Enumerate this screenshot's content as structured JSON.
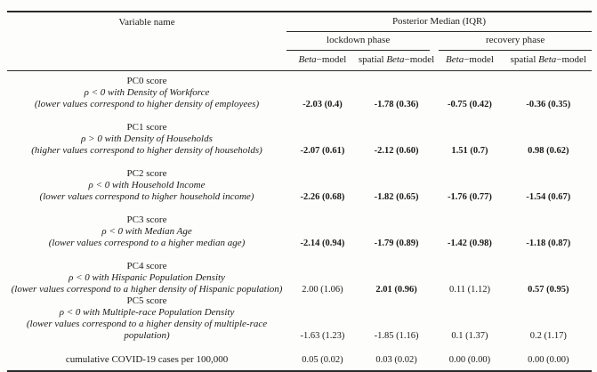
{
  "page": {
    "background_color": "#fdfdfc",
    "text_color": "#1b1b1b",
    "rule_color": "#2a2a2a"
  },
  "table": {
    "header": {
      "variable_name": "Variable name",
      "posterior_median": "Posterior Median (IQR)",
      "phase_lockdown": "lockdown phase",
      "phase_recovery": "recovery phase",
      "model_columns": [
        {
          "prefix": "",
          "italic": "Beta",
          "suffix": "−model"
        },
        {
          "prefix": "spatial ",
          "italic": "Beta",
          "suffix": "−model"
        },
        {
          "prefix": "",
          "italic": "Beta",
          "suffix": "−model"
        },
        {
          "prefix": "spatial ",
          "italic": "Beta",
          "suffix": "−model"
        }
      ]
    },
    "rows": [
      {
        "title": "PC0 score",
        "relation": "ρ < 0 with Density of Workforce",
        "note": "(lower values correspond to higher density of employees)",
        "values": [
          {
            "text": "-2.03 (0.4)",
            "bold": true
          },
          {
            "text": "-1.78 (0.36)",
            "bold": true
          },
          {
            "text": "-0.75 (0.42)",
            "bold": true
          },
          {
            "text": "-0.36 (0.35)",
            "bold": true
          }
        ]
      },
      {
        "title": "PC1 score",
        "relation": "ρ > 0 with Density of Households",
        "note": "(higher values correspond to higher density of households)",
        "values": [
          {
            "text": "-2.07 (0.61)",
            "bold": true
          },
          {
            "text": "-2.12 (0.60)",
            "bold": true
          },
          {
            "text": "1.51 (0.7)",
            "bold": true
          },
          {
            "text": "0.98 (0.62)",
            "bold": true
          }
        ]
      },
      {
        "title": "PC2 score",
        "relation": "ρ < 0 with Household Income",
        "note": "(lower values correspond to higher household income)",
        "values": [
          {
            "text": "-2.26 (0.68)",
            "bold": true
          },
          {
            "text": "-1.82 (0.65)",
            "bold": true
          },
          {
            "text": "-1.76 (0.77)",
            "bold": true
          },
          {
            "text": "-1.54 (0.67)",
            "bold": true
          }
        ]
      },
      {
        "title": "PC3 score",
        "relation": "ρ < 0 with Median Age",
        "note": "(lower values correspond to a higher median age)",
        "values": [
          {
            "text": "-2.14 (0.94)",
            "bold": true
          },
          {
            "text": "-1.79 (0.89)",
            "bold": true
          },
          {
            "text": "-1.42 (0.98)",
            "bold": true
          },
          {
            "text": "-1.18 (0.87)",
            "bold": true
          }
        ]
      },
      {
        "title": "PC4 score",
        "relation": "ρ < 0 with Hispanic Population Density",
        "note": "(lower values correspond to a higher density of Hispanic population)",
        "values": [
          {
            "text": "2.00 (1.06)",
            "bold": false
          },
          {
            "text": "2.01 (0.96)",
            "bold": true
          },
          {
            "text": "0.11 (1.12)",
            "bold": false
          },
          {
            "text": "0.57 (0.95)",
            "bold": true
          }
        ]
      },
      {
        "title": "PC5 score",
        "relation": "ρ < 0 with Multiple-race Population Density",
        "note": "(lower values correspond to a higher density of multiple-race population)",
        "values": [
          {
            "text": "-1.63 (1.23)",
            "bold": false
          },
          {
            "text": "-1.85 (1.16)",
            "bold": false
          },
          {
            "text": "0.1 (1.37)",
            "bold": false
          },
          {
            "text": "0.2 (1.17)",
            "bold": false
          }
        ]
      },
      {
        "title": "cumulative COVID-19 cases per 100,000",
        "values": [
          {
            "text": "0.05 (0.02)",
            "bold": false
          },
          {
            "text": "0.03 (0.02)",
            "bold": false
          },
          {
            "text": "0.00 (0.00)",
            "bold": false
          },
          {
            "text": "0.00 (0.00)",
            "bold": false
          }
        ]
      }
    ]
  }
}
